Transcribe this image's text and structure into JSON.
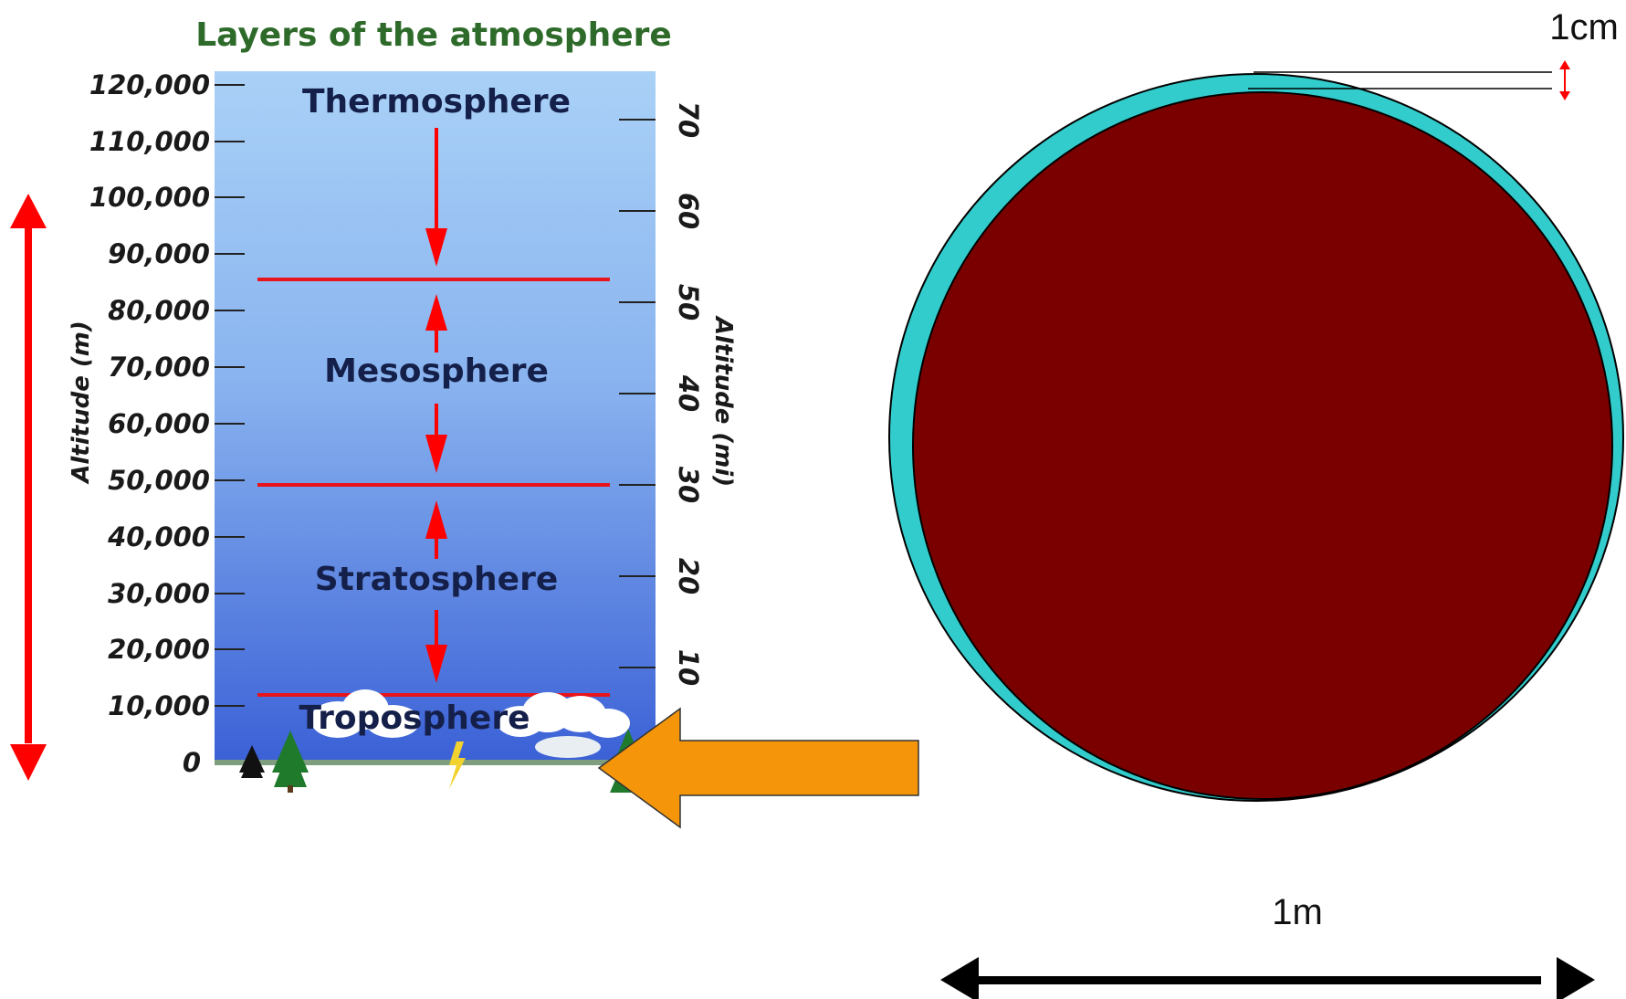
{
  "diagram": {
    "title": "Layers of the atmosphere",
    "left_axis_label": "Altitude (m)",
    "right_axis_label": "Altitude (mi)",
    "left_ticks": [
      "120,000",
      "110,000",
      "100,000",
      "90,000",
      "80,000",
      "70,000",
      "60,000",
      "50,000",
      "40,000",
      "30,000",
      "20,000",
      "10,000",
      "0"
    ],
    "right_ticks": [
      "70",
      "60",
      "50",
      "40",
      "30",
      "20",
      "10"
    ],
    "layers": [
      "Thermosphere",
      "Mesosphere",
      "Stratosphere",
      "Troposphere"
    ],
    "earth_model": {
      "thickness_label": "1cm",
      "diameter_label": "1m"
    },
    "colors": {
      "title_green": "#2e6b2a",
      "boundary_red": "#e8141c",
      "arrow_red": "#ff0000",
      "pointer_orange": "#f5960a",
      "earth_fill": "#7a0000",
      "atmosphere_ring": "#33cccc",
      "sky_top": "#9cc7f2",
      "sky_bottom": "#3f66d8"
    }
  }
}
